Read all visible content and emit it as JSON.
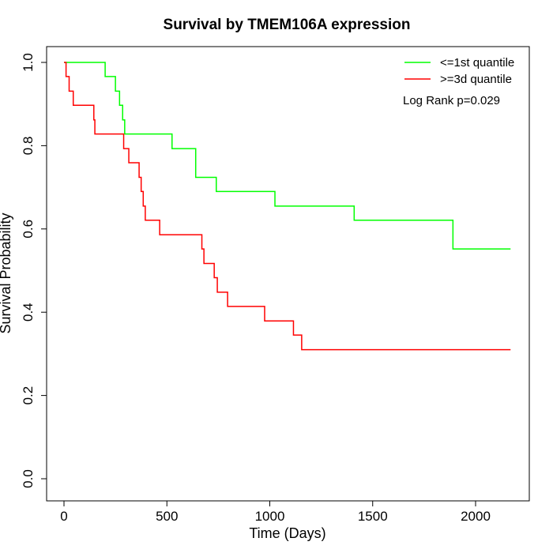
{
  "chart_data": {
    "type": "line",
    "title": "Survival by TMEM106A expression",
    "xlabel": "Time (Days)",
    "ylabel": "Survival Probability",
    "xlim": [
      0,
      2250
    ],
    "ylim": [
      -0.04,
      1.04
    ],
    "xticks": [
      0,
      500,
      1000,
      1500,
      2000
    ],
    "yticks": [
      0.0,
      0.2,
      0.4,
      0.6,
      0.8,
      1.0
    ],
    "xtick_labels": [
      "0",
      "500",
      "1000",
      "1500",
      "2000"
    ],
    "ytick_labels": [
      "0.0",
      "0.2",
      "0.4",
      "0.6",
      "0.8",
      "1.0"
    ],
    "grid": false,
    "legend_position": "top-right",
    "annotation": "Log Rank p=0.029",
    "series": [
      {
        "name": "<=1st quantile",
        "color": "#00ff00",
        "step": true,
        "x": [
          0,
          200,
          250,
          270,
          285,
          295,
          525,
          640,
          740,
          1025,
          1410,
          1890,
          2170
        ],
        "y": [
          1.0,
          0.966,
          0.931,
          0.897,
          0.862,
          0.828,
          0.793,
          0.724,
          0.69,
          0.655,
          0.621,
          0.552,
          0.552
        ]
      },
      {
        "name": ">=3d quantile",
        "color": "#ff0000",
        "step": true,
        "x": [
          0,
          10,
          25,
          45,
          145,
          150,
          290,
          315,
          365,
          375,
          385,
          395,
          405,
          465,
          670,
          680,
          730,
          745,
          795,
          975,
          1115,
          1155,
          2170
        ],
        "y": [
          1.0,
          0.966,
          0.931,
          0.897,
          0.862,
          0.828,
          0.793,
          0.759,
          0.724,
          0.69,
          0.655,
          0.621,
          0.621,
          0.586,
          0.552,
          0.517,
          0.483,
          0.448,
          0.414,
          0.379,
          0.345,
          0.31,
          0.31
        ]
      }
    ]
  }
}
